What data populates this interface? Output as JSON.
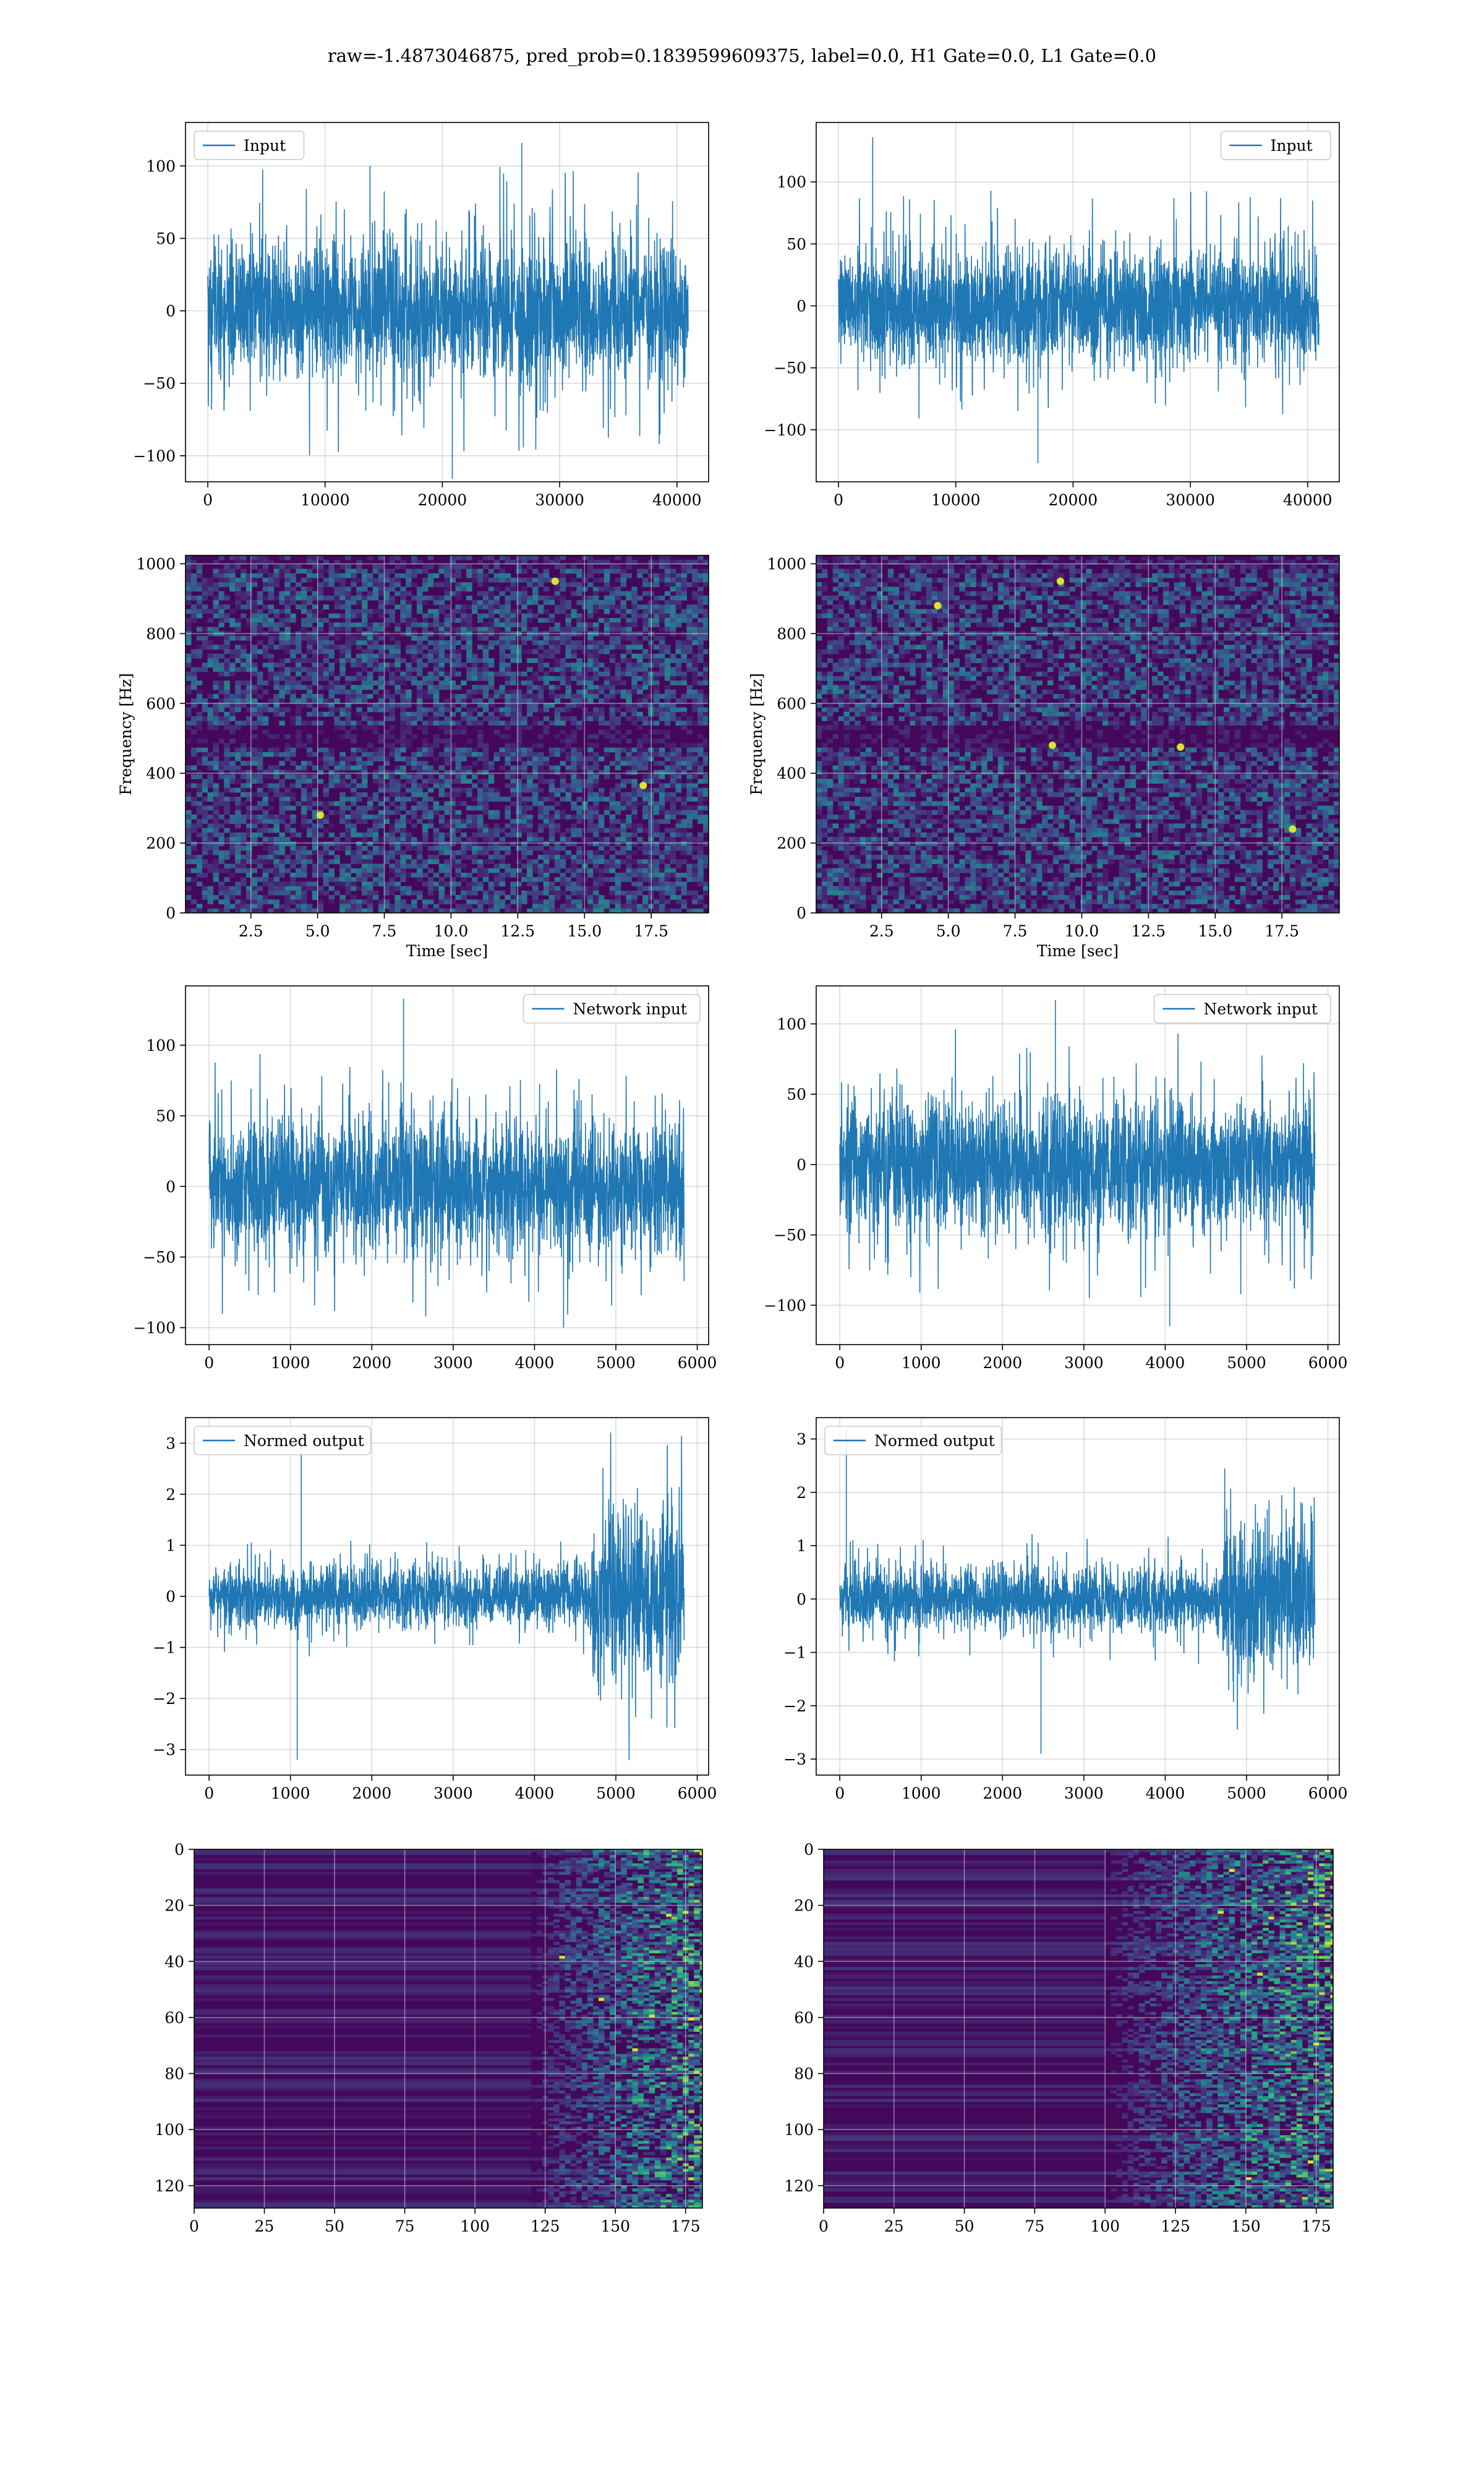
{
  "figure": {
    "title": "raw=-1.4873046875, pred_prob=0.1839599609375, label=0.0, H1 Gate=0.0, L1 Gate=0.0",
    "line_color": "#1f77b4"
  },
  "chart_data": [
    {
      "id": "input-h1",
      "type": "line",
      "legend": {
        "label": "Input",
        "placement": "upper-left"
      },
      "xlim": [
        -1900,
        42700
      ],
      "ylim": [
        -118,
        130
      ],
      "x_ticks": [
        0,
        10000,
        20000,
        30000,
        40000
      ],
      "x_tick_labels": [
        "0",
        "10000",
        "20000",
        "30000",
        "40000"
      ],
      "y_ticks": [
        -100,
        -50,
        0,
        50,
        100
      ],
      "y_tick_labels": [
        "−100",
        "−50",
        "0",
        "50",
        "100"
      ],
      "grid": true,
      "series": [
        {
          "x_range": [
            0,
            40959
          ],
          "n_points": 40960,
          "band_sigma": 25,
          "max": 116,
          "min": -116
        }
      ]
    },
    {
      "id": "input-l1",
      "type": "line",
      "legend": {
        "label": "Input",
        "placement": "upper-right"
      },
      "xlim": [
        -1900,
        42700
      ],
      "ylim": [
        -142,
        148
      ],
      "x_ticks": [
        0,
        10000,
        20000,
        30000,
        40000
      ],
      "x_tick_labels": [
        "0",
        "10000",
        "20000",
        "30000",
        "40000"
      ],
      "y_ticks": [
        -100,
        -50,
        0,
        50,
        100
      ],
      "y_tick_labels": [
        "−100",
        "−50",
        "0",
        "50",
        "100"
      ],
      "grid": true,
      "series": [
        {
          "x_range": [
            0,
            40959
          ],
          "n_points": 40960,
          "band_sigma": 24,
          "max": 136,
          "min": -127
        }
      ]
    },
    {
      "id": "spectrogram-h1",
      "type": "heatmap",
      "colormap": "viridis",
      "xlabel": "Time [sec]",
      "ylabel": "Frequency [Hz]",
      "xlim": [
        0.05,
        19.65
      ],
      "ylim": [
        0,
        1024
      ],
      "x_ticks": [
        2.5,
        5.0,
        7.5,
        10.0,
        12.5,
        15.0,
        17.5
      ],
      "x_tick_labels": [
        "2.5",
        "5.0",
        "7.5",
        "10.0",
        "12.5",
        "15.0",
        "17.5"
      ],
      "y_ticks": [
        0,
        200,
        400,
        600,
        800,
        1000
      ],
      "y_tick_labels": [
        "0",
        "200",
        "400",
        "600",
        "800",
        "1000"
      ],
      "grid": true,
      "hot_spots": [
        [
          5.1,
          280
        ],
        [
          13.9,
          950
        ],
        [
          17.2,
          365
        ]
      ]
    },
    {
      "id": "spectrogram-l1",
      "type": "heatmap",
      "colormap": "viridis",
      "xlabel": "Time [sec]",
      "ylabel": "Frequency [Hz]",
      "xlim": [
        0.05,
        19.65
      ],
      "ylim": [
        0,
        1024
      ],
      "x_ticks": [
        2.5,
        5.0,
        7.5,
        10.0,
        12.5,
        15.0,
        17.5
      ],
      "x_tick_labels": [
        "2.5",
        "5.0",
        "7.5",
        "10.0",
        "12.5",
        "15.0",
        "17.5"
      ],
      "y_ticks": [
        0,
        200,
        400,
        600,
        800,
        1000
      ],
      "y_tick_labels": [
        "0",
        "200",
        "400",
        "600",
        "800",
        "1000"
      ],
      "grid": true,
      "hot_spots": [
        [
          9.2,
          950
        ],
        [
          4.6,
          880
        ],
        [
          8.9,
          480
        ],
        [
          13.7,
          475
        ],
        [
          17.9,
          240
        ]
      ]
    },
    {
      "id": "network-input-h1",
      "type": "line",
      "legend": {
        "label": "Network input",
        "placement": "upper-right"
      },
      "xlim": [
        -290,
        6140
      ],
      "ylim": [
        -112,
        142
      ],
      "x_ticks": [
        0,
        1000,
        2000,
        3000,
        4000,
        5000,
        6000
      ],
      "x_tick_labels": [
        "0",
        "1000",
        "2000",
        "3000",
        "4000",
        "5000",
        "6000"
      ],
      "y_ticks": [
        -100,
        -50,
        0,
        50,
        100
      ],
      "y_tick_labels": [
        "−100",
        "−50",
        "0",
        "50",
        "100"
      ],
      "grid": true,
      "series": [
        {
          "x_range": [
            0,
            5839
          ],
          "n_points": 5840,
          "band_sigma": 24,
          "max": 133,
          "min": -100
        }
      ]
    },
    {
      "id": "network-input-l1",
      "type": "line",
      "legend": {
        "label": "Network input",
        "placement": "upper-right"
      },
      "xlim": [
        -290,
        6140
      ],
      "ylim": [
        -128,
        127
      ],
      "x_ticks": [
        0,
        1000,
        2000,
        3000,
        4000,
        5000,
        6000
      ],
      "x_tick_labels": [
        "0",
        "1000",
        "2000",
        "3000",
        "4000",
        "5000",
        "6000"
      ],
      "y_ticks": [
        -100,
        -50,
        0,
        50,
        100
      ],
      "y_tick_labels": [
        "−100",
        "−50",
        "0",
        "50",
        "100"
      ],
      "grid": true,
      "series": [
        {
          "x_range": [
            0,
            5839
          ],
          "n_points": 5840,
          "band_sigma": 24,
          "max": 117,
          "min": -115
        }
      ]
    },
    {
      "id": "normed-output-h1",
      "type": "line",
      "legend": {
        "label": "Normed output",
        "placement": "upper-left"
      },
      "xlim": [
        -290,
        6140
      ],
      "ylim": [
        -3.5,
        3.5
      ],
      "x_ticks": [
        0,
        1000,
        2000,
        3000,
        4000,
        5000,
        6000
      ],
      "x_tick_labels": [
        "0",
        "1000",
        "2000",
        "3000",
        "4000",
        "5000",
        "6000"
      ],
      "y_ticks": [
        -3,
        -2,
        -1,
        0,
        1,
        2,
        3
      ],
      "y_tick_labels": [
        "−3",
        "−2",
        "−1",
        "0",
        "1",
        "2",
        "3"
      ],
      "grid": true,
      "series": [
        {
          "x_range": [
            0,
            5839
          ],
          "n_points": 5840,
          "band_sigma": 0.3,
          "burst_start": 4700,
          "burst_sigma": 0.9,
          "max": 3.2,
          "min": -3.2
        }
      ]
    },
    {
      "id": "normed-output-l1",
      "type": "line",
      "legend": {
        "label": "Normed output",
        "placement": "upper-left"
      },
      "xlim": [
        -290,
        6140
      ],
      "ylim": [
        -3.3,
        3.4
      ],
      "x_ticks": [
        0,
        1000,
        2000,
        3000,
        4000,
        5000,
        6000
      ],
      "x_tick_labels": [
        "0",
        "1000",
        "2000",
        "3000",
        "4000",
        "5000",
        "6000"
      ],
      "y_ticks": [
        -3,
        -2,
        -1,
        0,
        1,
        2,
        3
      ],
      "y_tick_labels": [
        "−3",
        "−2",
        "−1",
        "0",
        "1",
        "2",
        "3"
      ],
      "grid": true,
      "series": [
        {
          "x_range": [
            0,
            5839
          ],
          "n_points": 5840,
          "band_sigma": 0.3,
          "burst_start": 4700,
          "burst_sigma": 0.8,
          "max": 3.2,
          "min": -2.9
        }
      ]
    },
    {
      "id": "feature-map-h1",
      "type": "heatmap",
      "colormap": "viridis",
      "xlim": [
        0,
        181
      ],
      "ylim": [
        128,
        0
      ],
      "x_ticks": [
        0,
        25,
        50,
        75,
        100,
        125,
        150,
        175
      ],
      "x_tick_labels": [
        "0",
        "25",
        "50",
        "75",
        "100",
        "125",
        "150",
        "175"
      ],
      "y_ticks": [
        0,
        20,
        40,
        60,
        80,
        100,
        120
      ],
      "y_tick_labels": [
        "0",
        "20",
        "40",
        "60",
        "80",
        "100",
        "120"
      ],
      "grid": true,
      "active_from": 120
    },
    {
      "id": "feature-map-l1",
      "type": "heatmap",
      "colormap": "viridis",
      "xlim": [
        0,
        181
      ],
      "ylim": [
        128,
        0
      ],
      "x_ticks": [
        0,
        25,
        50,
        75,
        100,
        125,
        150,
        175
      ],
      "x_tick_labels": [
        "0",
        "25",
        "50",
        "75",
        "100",
        "125",
        "150",
        "175"
      ],
      "y_ticks": [
        0,
        20,
        40,
        60,
        80,
        100,
        120
      ],
      "y_tick_labels": [
        "0",
        "20",
        "40",
        "60",
        "80",
        "100",
        "120"
      ],
      "grid": true,
      "active_from": 100
    }
  ]
}
